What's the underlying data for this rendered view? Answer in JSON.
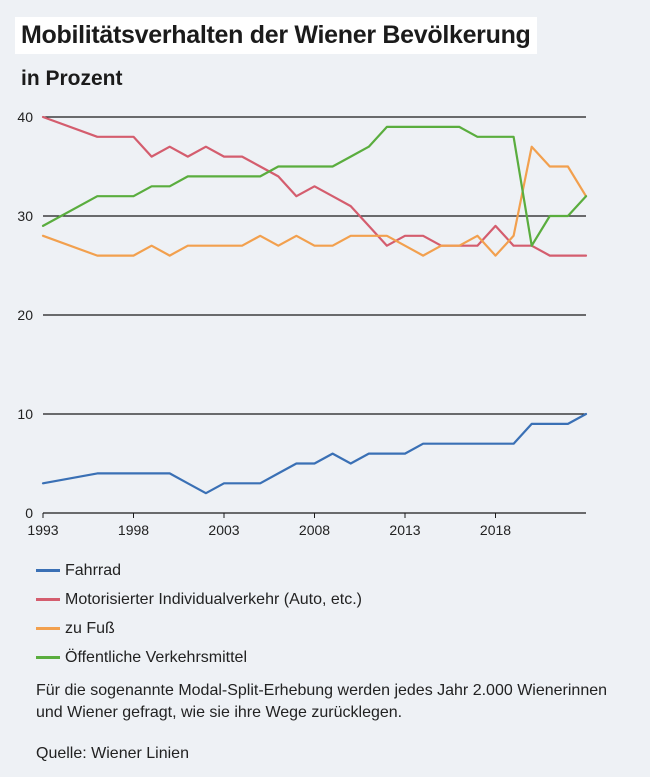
{
  "header": {
    "title": "Mobilitätsverhalten der Wiener Bevölkerung",
    "subtitle": "in Prozent"
  },
  "chart_data": {
    "type": "line",
    "title": "Mobilitätsverhalten der Wiener Bevölkerung",
    "ylabel": "in Prozent",
    "xlabel": "",
    "xlim": [
      1993,
      2023
    ],
    "ylim": [
      0,
      40
    ],
    "yticks": [
      0,
      10,
      20,
      30,
      40
    ],
    "xticks": [
      1993,
      1998,
      2003,
      2008,
      2013,
      2018
    ],
    "x": [
      1993,
      1996,
      1997,
      1998,
      1999,
      2000,
      2001,
      2002,
      2003,
      2004,
      2005,
      2006,
      2007,
      2008,
      2009,
      2010,
      2011,
      2012,
      2013,
      2014,
      2015,
      2016,
      2017,
      2018,
      2019,
      2020,
      2021,
      2022,
      2023
    ],
    "series": [
      {
        "name": "Fahrrad",
        "color": "#3a70b5",
        "values": [
          3,
          4,
          4,
          4,
          4,
          4,
          3,
          2,
          3,
          3,
          3,
          4,
          5,
          5,
          6,
          5,
          6,
          6,
          6,
          7,
          7,
          7,
          7,
          7,
          7,
          9,
          9,
          9,
          10
        ]
      },
      {
        "name": "Motorisierter Individualverkehr (Auto, etc.)",
        "color": "#d45d6e",
        "values": [
          40,
          38,
          38,
          38,
          36,
          37,
          36,
          37,
          36,
          36,
          35,
          34,
          32,
          33,
          32,
          31,
          29,
          27,
          28,
          28,
          27,
          27,
          27,
          29,
          27,
          27,
          26,
          26,
          26
        ]
      },
      {
        "name": "zu Fuß",
        "color": "#f2a04e",
        "values": [
          28,
          26,
          26,
          26,
          27,
          26,
          27,
          27,
          27,
          27,
          28,
          27,
          28,
          27,
          27,
          28,
          28,
          28,
          27,
          26,
          27,
          27,
          28,
          26,
          28,
          37,
          35,
          35,
          32
        ]
      },
      {
        "name": "Öffentliche Verkehrsmittel",
        "color": "#5aad3e",
        "values": [
          29,
          32,
          32,
          32,
          33,
          33,
          34,
          34,
          34,
          34,
          34,
          35,
          35,
          35,
          35,
          36,
          37,
          39,
          39,
          39,
          39,
          39,
          38,
          38,
          38,
          27,
          30,
          30,
          32
        ]
      }
    ],
    "grid": true,
    "legend_position": "bottom"
  },
  "note": "Für die sogenannte Modal-Split-Erhebung werden jedes Jahr 2.000 Wienerinnen und Wiener gefragt, wie sie ihre Wege zurücklegen.",
  "source": "Quelle: Wiener Linien"
}
